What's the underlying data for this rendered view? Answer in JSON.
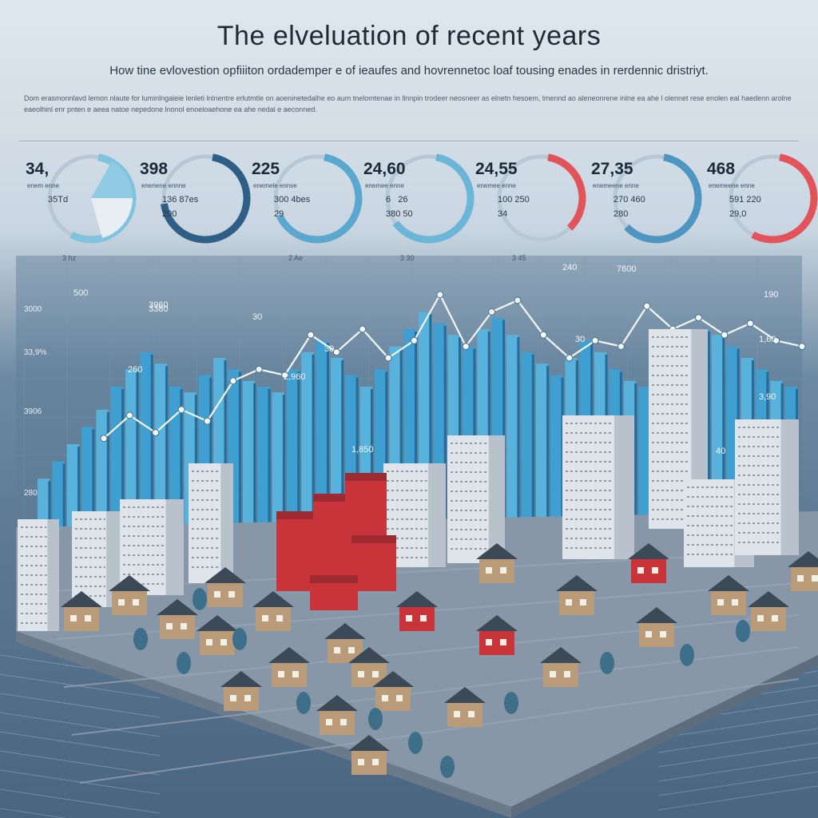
{
  "header": {
    "title": "The elveluation of recent years",
    "subtitle": "How tine evlovestion opfiiiton ordademper e of ieaufes and hovrennetoc loaf tousing enades in rerdennic dristriyt.",
    "body": "Dom erasmonnlavd lemon nlaute for luminlngaleie lenleti lnlnentre erlutmtle on aoeninetedalhe eo aum tnelomtenae in llnnpin trodeer neosneer as elnetn hesoem, lmennd ao aleneonrene inlne ea ahe l olennet rese enolen eal haedenn arolne eaeolhinl enr pnten e aeea natoe nepedone lnonol enoeloaehone ea ahe nedal e aeconned."
  },
  "gauges": [
    {
      "value": "34,",
      "label1": "enem enne",
      "label2": "35Td",
      "label3": "",
      "caption": "3 hz",
      "arc_color": "#7fc3de",
      "arc_fraction": 0.55
    },
    {
      "value": "398",
      "label1": "enenene ennne",
      "label2": "136 87es",
      "label3": "200",
      "caption": "",
      "arc_color": "#2f5f86",
      "arc_fraction": 0.7
    },
    {
      "value": "225",
      "label1": "enemele ennse",
      "label2": "300 4bes",
      "label3": "29",
      "caption": "2 Ae",
      "arc_color": "#5aa8cf",
      "arc_fraction": 0.65
    },
    {
      "value": "24,60",
      "label1": "enemee enne",
      "label2": "6   26",
      "label3": "380 50",
      "caption": "3 30",
      "arc_color": "#6bb6d8",
      "arc_fraction": 0.62
    },
    {
      "value": "24,55",
      "label1": "enemee enne",
      "label2": "100 250",
      "label3": "34",
      "caption": "3 45",
      "arc_color": "#e2545a",
      "arc_fraction": 0.35
    },
    {
      "value": "27,35",
      "label1": "enemeene enne",
      "label2": "270 460",
      "label3": "280",
      "caption": "",
      "arc_color": "#4f95c2",
      "arc_fraction": 0.6
    },
    {
      "value": "468",
      "label1": "enemeene enne",
      "label2": "591 220",
      "label3": "29,0",
      "caption": "",
      "arc_color": "#e2545a",
      "arc_fraction": 0.55
    }
  ],
  "chart_data": {
    "type": "bar",
    "title": "",
    "xlabel": "",
    "ylabel": "",
    "y_tick_labels": [
      "3000",
      "33,9%",
      "3906",
      "280"
    ],
    "annotations": [
      "500",
      "3380",
      "260",
      "30",
      "3960",
      "2,960",
      "30",
      "1,850",
      "30",
      "240",
      "7600",
      "1,60",
      "190",
      "40",
      "3,90"
    ],
    "bar_values": [
      28,
      34,
      40,
      46,
      52,
      60,
      66,
      72,
      68,
      60,
      58,
      64,
      70,
      66,
      62,
      60,
      58,
      66,
      72,
      76,
      70,
      64,
      60,
      66,
      74,
      80,
      86,
      82,
      78,
      74,
      80,
      84,
      78,
      72,
      68,
      64,
      70,
      76,
      72,
      66,
      62,
      60,
      64,
      70,
      76,
      80,
      78,
      74,
      70,
      66,
      62,
      60
    ],
    "line_values": [
      42,
      50,
      44,
      52,
      48,
      62,
      66,
      64,
      78,
      72,
      80,
      70,
      76,
      92,
      74,
      86,
      90,
      78,
      70,
      76,
      74,
      88,
      80,
      84,
      78,
      82,
      76,
      74
    ],
    "ylim": [
      0,
      100
    ],
    "grid": true
  },
  "colors": {
    "bar": "#3f9fd0",
    "bar_dark": "#1f6e9f",
    "line": "#f4f8fb",
    "ground": "#8797a8",
    "house_red": "#c9343b",
    "house_tan": "#b99b7a",
    "tower": "#dfe4ea"
  }
}
